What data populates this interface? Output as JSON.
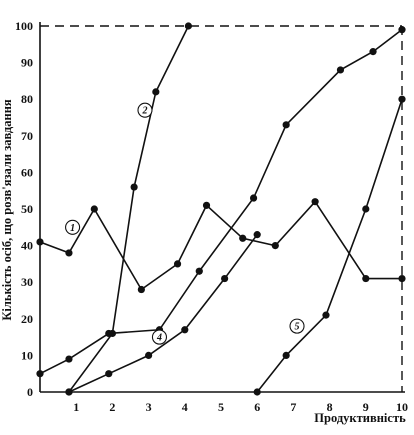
{
  "chart_data": {
    "type": "line",
    "xlabel": "Продуктивність",
    "ylabel": "Кількість осіб, що розв'язали завдання",
    "xlim": [
      0,
      10
    ],
    "ylim": [
      0,
      100
    ],
    "x_ticks": [
      "1",
      "2",
      "3",
      "4",
      "5",
      "6",
      "7",
      "8",
      "9",
      "10"
    ],
    "y_ticks": [
      "0",
      "10",
      "20",
      "30",
      "40",
      "50",
      "60",
      "70",
      "80",
      "90",
      "100"
    ],
    "series": [
      {
        "name": "1",
        "points": [
          [
            0,
            41
          ],
          [
            0.8,
            38
          ],
          [
            1.5,
            50
          ],
          [
            2.8,
            28
          ],
          [
            3.8,
            35
          ],
          [
            4.6,
            51
          ],
          [
            5.6,
            42
          ],
          [
            6.5,
            40
          ],
          [
            7.6,
            52
          ],
          [
            9,
            31
          ],
          [
            10,
            31
          ]
        ]
      },
      {
        "name": "2",
        "points": [
          [
            0.8,
            0
          ],
          [
            2,
            16
          ],
          [
            2.6,
            56
          ],
          [
            3.2,
            82
          ],
          [
            4.1,
            100
          ]
        ]
      },
      {
        "name": "4",
        "points": [
          [
            0,
            5
          ],
          [
            0.8,
            9
          ],
          [
            1.9,
            16
          ],
          [
            3.3,
            17
          ],
          [
            4.4,
            33
          ],
          [
            5.9,
            53
          ],
          [
            6.8,
            73
          ],
          [
            8.3,
            88
          ],
          [
            9.2,
            93
          ],
          [
            10,
            99
          ]
        ]
      },
      {
        "name": "5",
        "points": [
          [
            6,
            0
          ],
          [
            6.8,
            10
          ],
          [
            7.9,
            21
          ],
          [
            9,
            50
          ],
          [
            10,
            80
          ]
        ]
      },
      {
        "name": "",
        "points": [
          [
            0.8,
            0
          ],
          [
            1.9,
            5
          ],
          [
            3,
            10
          ],
          [
            4,
            17
          ],
          [
            5.1,
            31
          ],
          [
            6,
            43
          ]
        ]
      }
    ]
  }
}
